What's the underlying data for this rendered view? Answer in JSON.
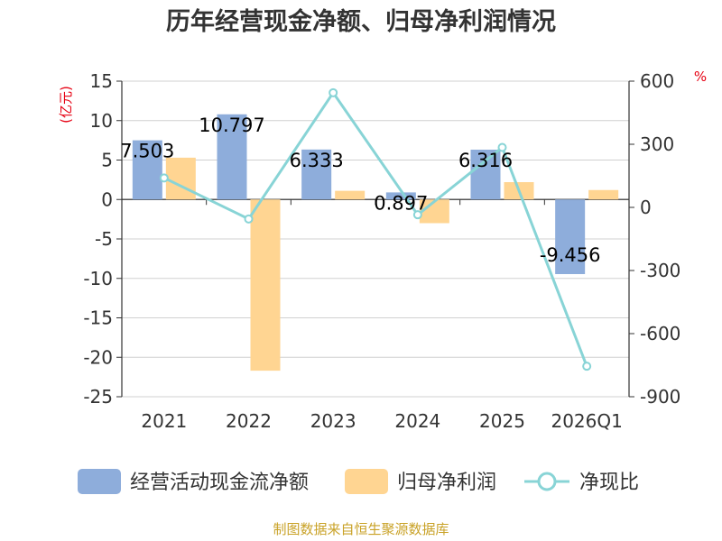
{
  "chart_data": {
    "type": "bar",
    "title": "历年经营现金净额、归母净利润情况",
    "categories": [
      "2021",
      "2022",
      "2023",
      "2024",
      "2025",
      "2026Q1"
    ],
    "y_left": {
      "unit": "(亿元)",
      "ylim": [
        -25,
        15
      ],
      "ticks": [
        15,
        10,
        5,
        0,
        -5,
        -10,
        -15,
        -20,
        -25
      ]
    },
    "y_right": {
      "unit": "%",
      "ylim": [
        -900,
        600
      ],
      "ticks": [
        600,
        300,
        0,
        -300,
        -600,
        -900
      ]
    },
    "series": [
      {
        "name": "经营活动现金流净额",
        "type": "bar",
        "axis": "left",
        "color": "#8eaddb",
        "values": [
          7.503,
          10.797,
          6.333,
          0.897,
          6.316,
          -9.456
        ],
        "labels": [
          "7.503",
          "10.797",
          "6.333",
          "0.897",
          "6.316",
          "-9.456"
        ]
      },
      {
        "name": "归母净利润",
        "type": "bar",
        "axis": "left",
        "color": "#ffd592",
        "values": [
          5.3,
          -21.7,
          1.1,
          -3.0,
          2.2,
          1.2
        ]
      },
      {
        "name": "净现比",
        "type": "line",
        "axis": "right",
        "color": "#88d4d6",
        "values": [
          140,
          -55,
          545,
          -35,
          285,
          -755
        ]
      }
    ],
    "source": "制图数据来自恒生聚源数据库"
  }
}
